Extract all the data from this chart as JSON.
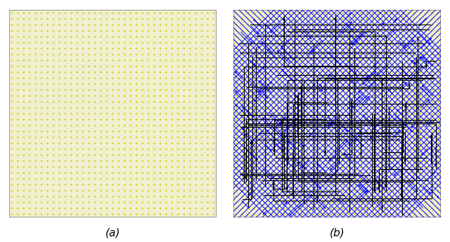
{
  "title_a": "(a)",
  "title_b": "(b)",
  "n_grid": 35,
  "background_color": "white",
  "panel_bg": "#f0f0d0",
  "arrow_color_yellow": "#cccc00",
  "arrow_color_blue": "blue",
  "arrow_color_black": "black",
  "seed": 42,
  "figsize": [
    6.4,
    3.45
  ],
  "dpi": 100,
  "n_blue_lines": 60,
  "n_black_lines": 40
}
